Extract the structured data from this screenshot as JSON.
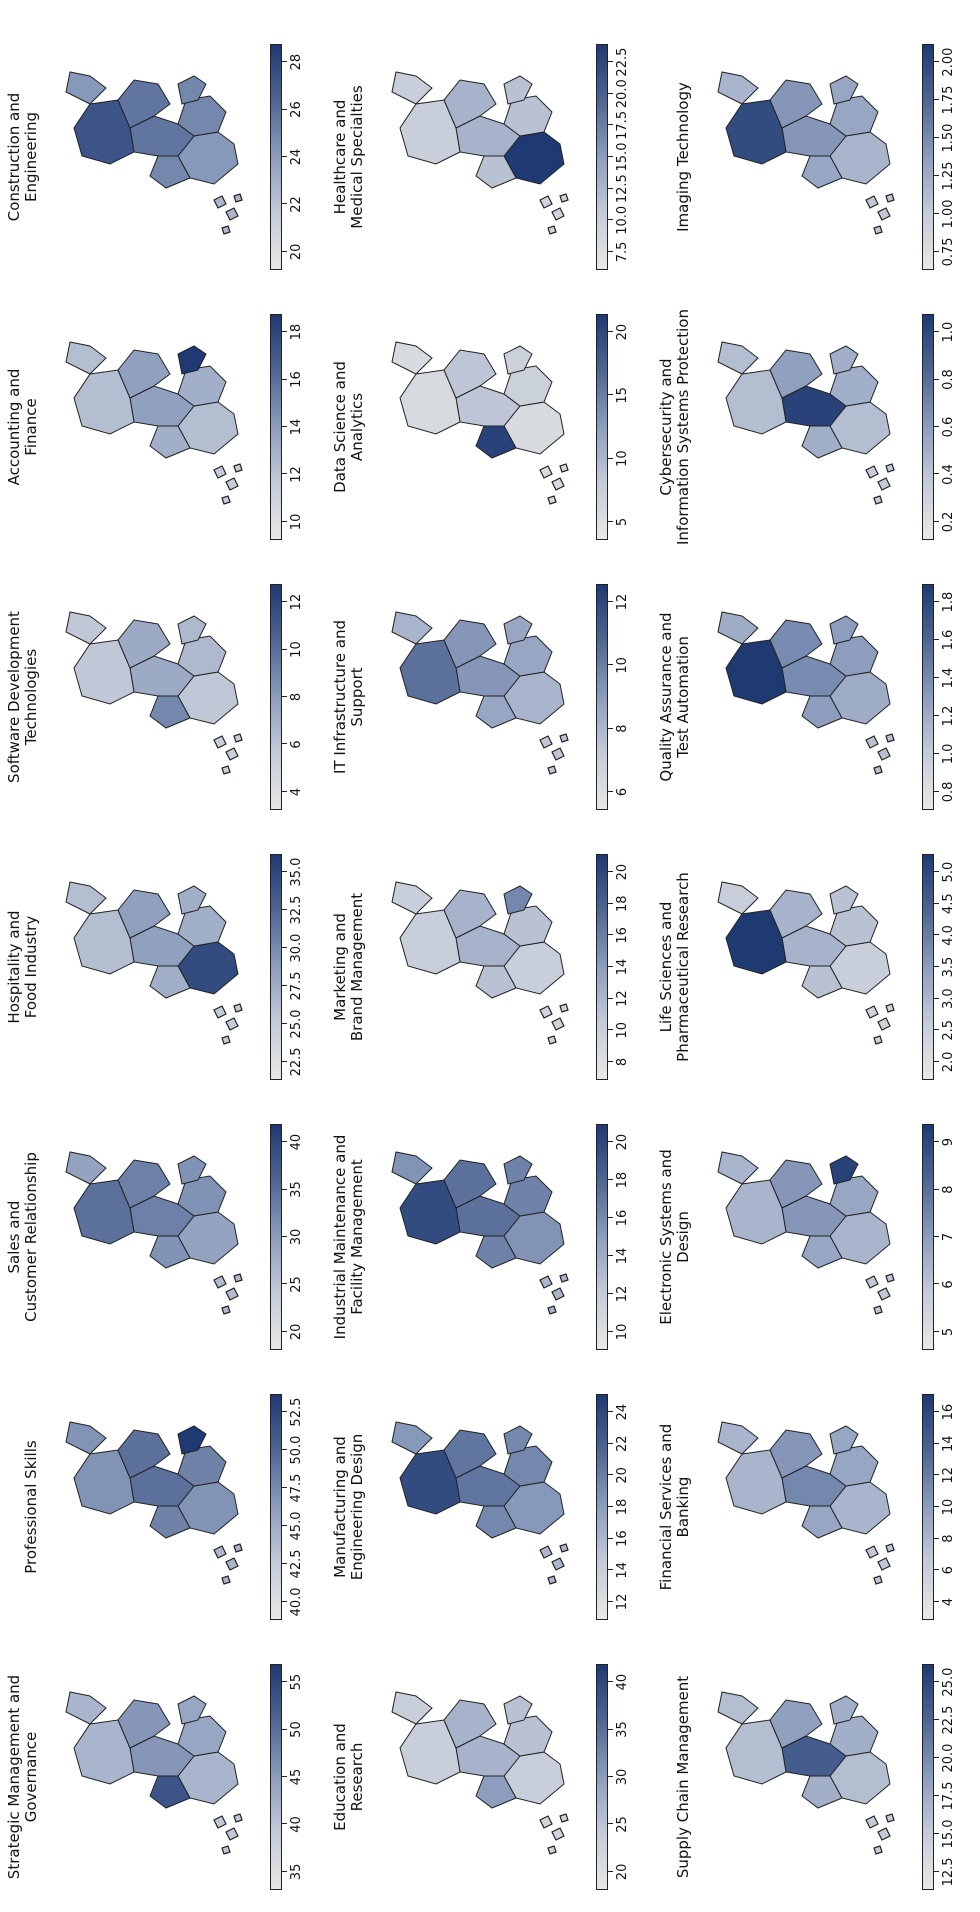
{
  "colors": {
    "low": "#e8e8e4",
    "high": "#1f3a73",
    "outline": "#222222"
  },
  "panels": [
    {
      "title": [
        "Strategic Management and",
        "Governance"
      ],
      "ticks": [
        "35",
        "40",
        "45",
        "50",
        "55"
      ],
      "mainPct": 0.45,
      "hotspot": "north-east",
      "hotPct": 0.85
    },
    {
      "title": [
        "Professional Skills"
      ],
      "ticks": [
        "40.0",
        "42.5",
        "45.0",
        "47.5",
        "50.0",
        "52.5"
      ],
      "mainPct": 0.62,
      "hotspot": "island",
      "hotPct": 1.0
    },
    {
      "title": [
        "Sales and",
        "Customer Relationship"
      ],
      "ticks": [
        "20",
        "25",
        "30",
        "35",
        "40"
      ],
      "mainPct": 0.55,
      "hotspot": "south",
      "hotPct": 0.7
    },
    {
      "title": [
        "Hospitality and",
        "Food Industry"
      ],
      "ticks": [
        "22.5",
        "25.0",
        "27.5",
        "30.0",
        "32.5",
        "35.0"
      ],
      "mainPct": 0.4,
      "hotspot": "north-west",
      "hotPct": 0.9
    },
    {
      "title": [
        "Software Development Technologies"
      ],
      "ticks": [
        "4",
        "6",
        "8",
        "10",
        "12"
      ],
      "mainPct": 0.35,
      "hotspot": "north-east",
      "hotPct": 0.6
    },
    {
      "title": [
        "Accounting and",
        "Finance"
      ],
      "ticks": [
        "10",
        "12",
        "14",
        "16",
        "18"
      ],
      "mainPct": 0.4,
      "hotspot": "island",
      "hotPct": 1.0
    },
    {
      "title": [
        "Construction and",
        "Engineering"
      ],
      "ticks": [
        "20",
        "22",
        "24",
        "26",
        "28"
      ],
      "mainPct": 0.6,
      "hotspot": "south",
      "hotPct": 0.85
    },
    {
      "title": [
        "Education and",
        "Research"
      ],
      "ticks": [
        "20",
        "25",
        "30",
        "35",
        "40"
      ],
      "mainPct": 0.3,
      "hotspot": "north-east",
      "hotPct": 0.5
    },
    {
      "title": [
        "Manufacturing and",
        "Engineering Design"
      ],
      "ticks": [
        "12",
        "14",
        "16",
        "18",
        "20",
        "22",
        "24"
      ],
      "mainPct": 0.6,
      "hotspot": "south",
      "hotPct": 0.9
    },
    {
      "title": [
        "Industrial Maintenance and",
        "Facility Management"
      ],
      "ticks": [
        "10",
        "12",
        "14",
        "16",
        "18",
        "20"
      ],
      "mainPct": 0.62,
      "hotspot": "south",
      "hotPct": 0.9
    },
    {
      "title": [
        "Marketing and",
        "Brand Management"
      ],
      "ticks": [
        "8",
        "10",
        "12",
        "14",
        "16",
        "18",
        "20"
      ],
      "mainPct": 0.3,
      "hotspot": "island",
      "hotPct": 0.6
    },
    {
      "title": [
        "IT Infrastructure and",
        "Support"
      ],
      "ticks": [
        "6",
        "8",
        "10",
        "12"
      ],
      "mainPct": 0.45,
      "hotspot": "south",
      "hotPct": 0.7
    },
    {
      "title": [
        "Data Science and",
        "Analytics"
      ],
      "ticks": [
        "5",
        "10",
        "15",
        "20"
      ],
      "mainPct": 0.2,
      "hotspot": "north-east",
      "hotPct": 0.95
    },
    {
      "title": [
        "Healthcare and",
        "Medical Specialties"
      ],
      "ticks": [
        "7.5",
        "10.0",
        "12.5",
        "15.0",
        "17.5",
        "20.0",
        "22.5"
      ],
      "mainPct": 0.3,
      "hotspot": "north-west",
      "hotPct": 1.0
    },
    {
      "title": [
        "Supply Chain Management"
      ],
      "ticks": [
        "12.5",
        "15.0",
        "17.5",
        "20.0",
        "22.5",
        "25.0"
      ],
      "mainPct": 0.4,
      "hotspot": "center",
      "hotPct": 0.8
    },
    {
      "title": [
        "Financial Services and",
        "Banking"
      ],
      "ticks": [
        "4",
        "6",
        "8",
        "10",
        "12",
        "14",
        "16"
      ],
      "mainPct": 0.45,
      "hotspot": "center",
      "hotPct": 0.6
    },
    {
      "title": [
        "Electronic Systems and",
        "Design"
      ],
      "ticks": [
        "5",
        "6",
        "7",
        "8",
        "9"
      ],
      "mainPct": 0.45,
      "hotspot": "island",
      "hotPct": 0.95
    },
    {
      "title": [
        "Life Sciences and",
        "Pharmaceutical Research"
      ],
      "ticks": [
        "2.0",
        "2.5",
        "3.0",
        "3.5",
        "4.0",
        "4.5",
        "5.0"
      ],
      "mainPct": 0.3,
      "hotspot": "south",
      "hotPct": 1.0
    },
    {
      "title": [
        "Quality Assurance and",
        "Test Automation"
      ],
      "ticks": [
        "0.8",
        "1.0",
        "1.2",
        "1.4",
        "1.6",
        "1.8"
      ],
      "mainPct": 0.5,
      "hotspot": "south",
      "hotPct": 1.0
    },
    {
      "title": [
        "Cybersecurity and",
        "Information Systems Protection"
      ],
      "ticks": [
        "0.2",
        "0.4",
        "0.6",
        "0.8",
        "1.0"
      ],
      "mainPct": 0.4,
      "hotspot": "center",
      "hotPct": 0.95
    },
    {
      "title": [
        "Imaging Technology"
      ],
      "ticks": [
        "0.75",
        "1.00",
        "1.25",
        "1.50",
        "1.75",
        "2.00"
      ],
      "mainPct": 0.45,
      "hotspot": "south",
      "hotPct": 0.9
    }
  ]
}
